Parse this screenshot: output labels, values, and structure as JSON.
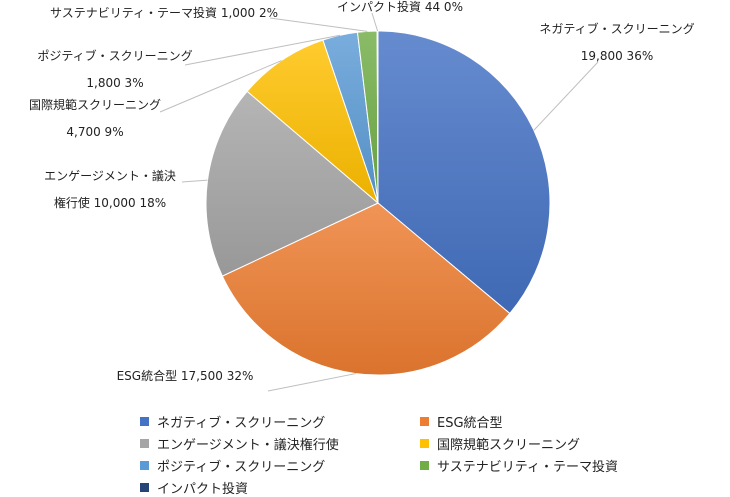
{
  "chart_data": {
    "type": "pie",
    "title": "",
    "slices": [
      {
        "label": "ネガティブ・スクリーニング",
        "value": 19800,
        "percent": "36%",
        "color": "#4472C4",
        "label_lines": [
          "ネガティブ・スクリーニング",
          "19,800 36%"
        ]
      },
      {
        "label": "ESG統合型",
        "value": 17500,
        "percent": "32%",
        "color": "#ED7D31",
        "label_lines": [
          "ESG統合型 17,500 32%"
        ]
      },
      {
        "label": "エンゲージメント・議決権行使",
        "value": 10000,
        "percent": "18%",
        "color": "#A5A5A5",
        "label_lines": [
          "エンゲージメント・議決",
          "権行使 10,000 18%"
        ]
      },
      {
        "label": "国際規範スクリーニング",
        "value": 4700,
        "percent": "9%",
        "color": "#FFC000",
        "label_lines": [
          "国際規範スクリーニング",
          "4,700 9%"
        ]
      },
      {
        "label": "ポジティブ・スクリーニング",
        "value": 1800,
        "percent": "3%",
        "color": "#5B9BD5",
        "label_lines": [
          "ポジティブ・スクリーニング",
          "1,800 3%"
        ]
      },
      {
        "label": "サステナビリティ・テーマ投資",
        "value": 1000,
        "percent": "2%",
        "color": "#70AD47",
        "label_lines": [
          "サステナビリティ・テーマ投資 1,000 2%"
        ]
      },
      {
        "label": "インパクト投資",
        "value": 44,
        "percent": "0%",
        "color": "#264478",
        "label_lines": [
          "インパクト投資 44 0%"
        ]
      }
    ],
    "legend_position": "bottom"
  }
}
